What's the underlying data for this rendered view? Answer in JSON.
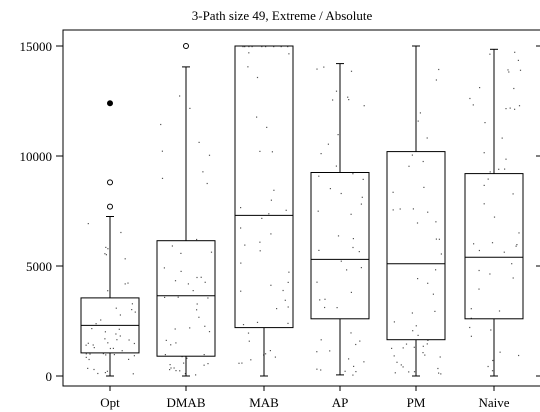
{
  "chart_data": {
    "type": "box",
    "title": "3-Path size 49, Extreme / Absolute",
    "xlabel": "",
    "ylabel": "",
    "ylim": [
      0,
      15000
    ],
    "y_ticks": [
      0,
      5000,
      10000,
      15000
    ],
    "y_tick_labels": [
      "0",
      "5000",
      "10000",
      "15000"
    ],
    "categories": [
      "Opt",
      "DMAB",
      "MAB",
      "AP",
      "PM",
      "Naive"
    ],
    "grid": false,
    "legend": "none",
    "colors": {
      "axis": "#000000",
      "box": "#000000",
      "jitter_points": "#555555"
    },
    "boxes": [
      {
        "name": "Opt",
        "whisker_low": 0,
        "q1": 1050,
        "median": 2300,
        "q3": 3550,
        "whisker_high": 7250,
        "outliers": [
          {
            "value": 7700,
            "filled": false
          },
          {
            "value": 8800,
            "filled": false
          },
          {
            "value": 12400,
            "filled": true
          }
        ]
      },
      {
        "name": "DMAB",
        "whisker_low": 0,
        "q1": 900,
        "median": 3650,
        "q3": 6150,
        "whisker_high": 14050,
        "outliers": [
          {
            "value": 15000,
            "filled": false
          }
        ]
      },
      {
        "name": "MAB",
        "whisker_low": 0,
        "q1": 2200,
        "median": 7300,
        "q3": 15000,
        "whisker_high": 15000,
        "outliers": []
      },
      {
        "name": "AP",
        "whisker_low": 50,
        "q1": 2600,
        "median": 5300,
        "q3": 9250,
        "whisker_high": 14200,
        "outliers": []
      },
      {
        "name": "PM",
        "whisker_low": 0,
        "q1": 1650,
        "median": 5100,
        "q3": 10200,
        "whisker_high": 15000,
        "outliers": []
      },
      {
        "name": "Naive",
        "whisker_low": 0,
        "q1": 2600,
        "median": 5400,
        "q3": 9200,
        "whisker_high": 14850,
        "outliers": []
      }
    ]
  }
}
